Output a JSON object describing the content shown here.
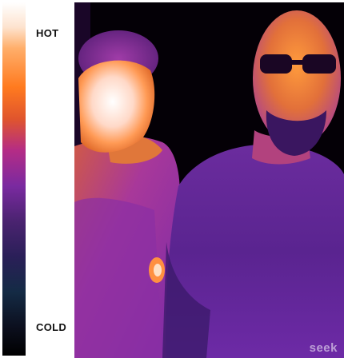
{
  "legend": {
    "hot_label": "HOT",
    "cold_label": "COLD"
  },
  "watermark": "seek",
  "colors": {
    "hot": "#ffffff",
    "warm": "#ff7a1f",
    "mid": "#b42c86",
    "cool": "#4a2370",
    "cold": "#000000"
  }
}
